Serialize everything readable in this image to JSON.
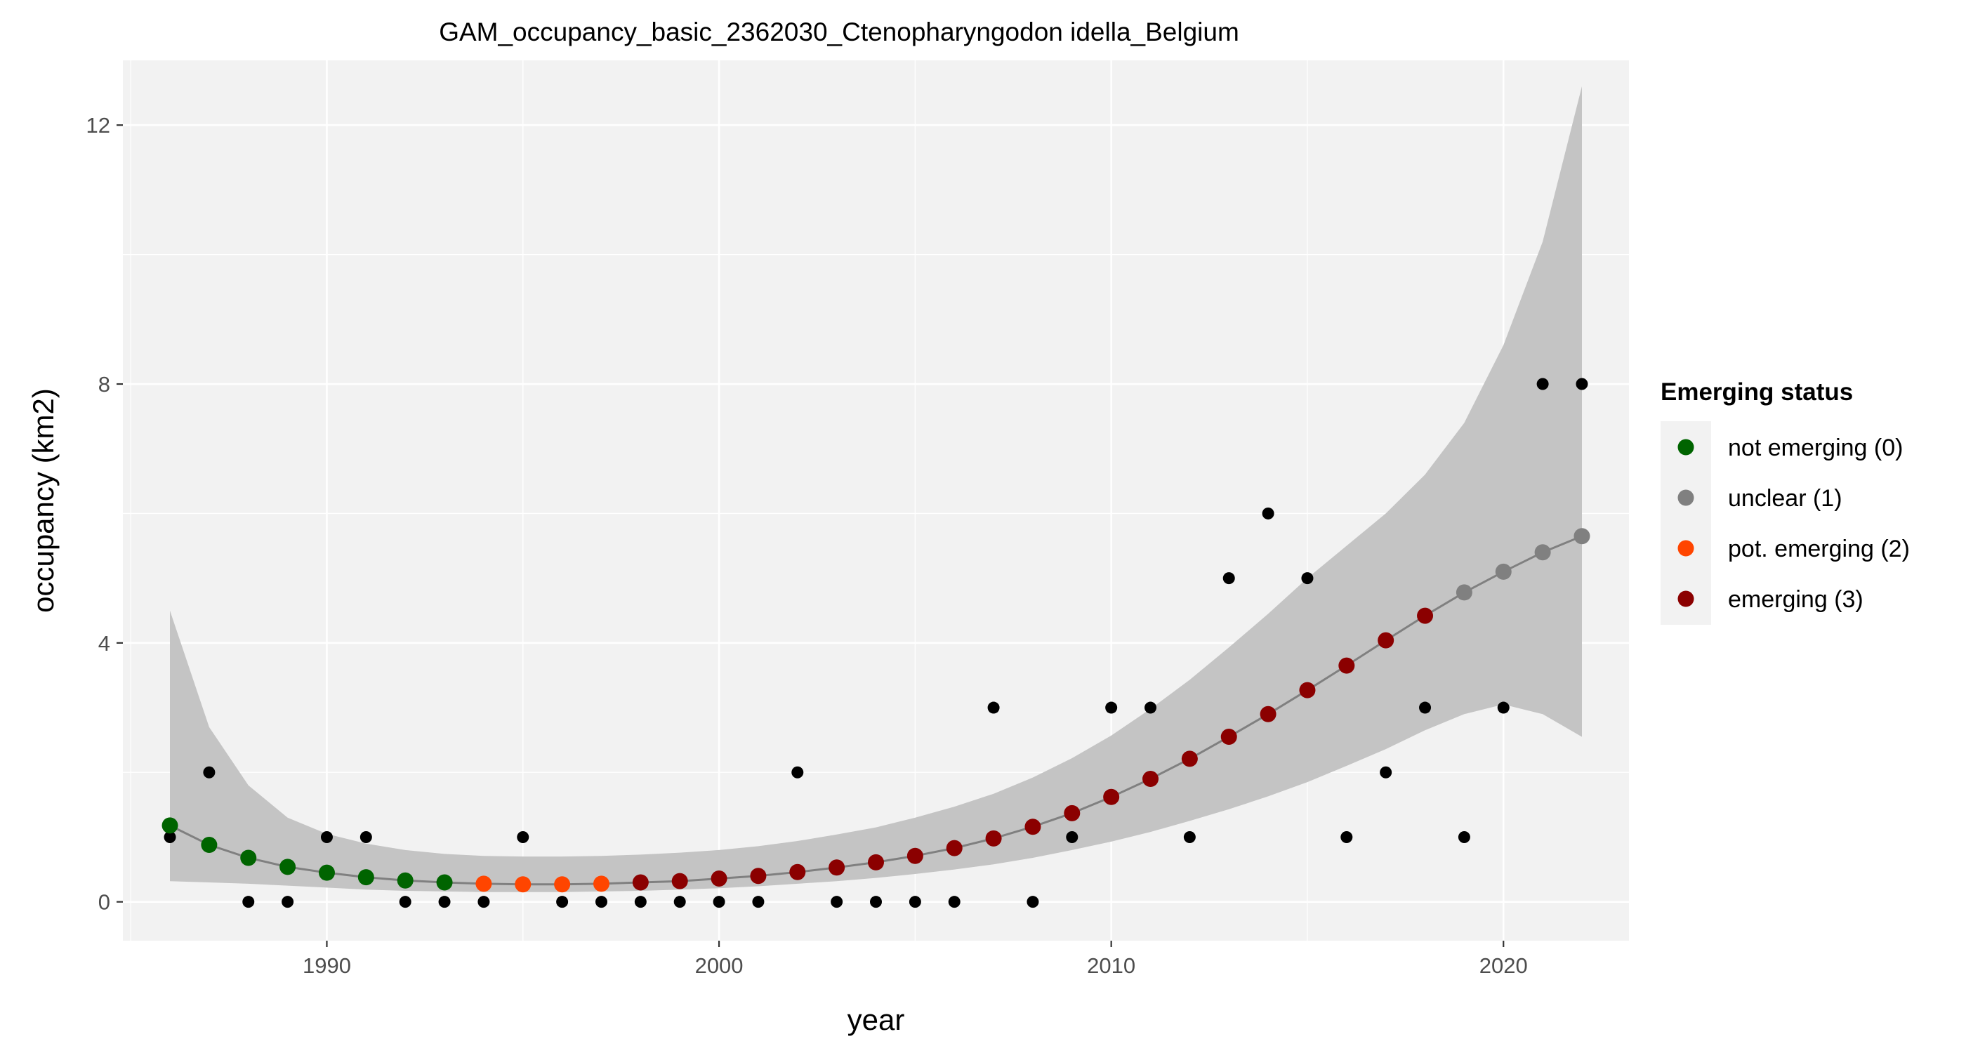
{
  "chart_data": {
    "type": "scatter",
    "title": "GAM_occupancy_basic_2362030_Ctenopharyngodon idella_Belgium",
    "xlabel": "year",
    "ylabel": "occupancy (km2)",
    "xlim": [
      1984.8,
      2023.2
    ],
    "ylim": [
      -0.6,
      13.0
    ],
    "x_ticks": [
      1990,
      2000,
      2010,
      2020
    ],
    "y_ticks": [
      0,
      4,
      8,
      12
    ],
    "grid": true,
    "legend": {
      "title": "Emerging status",
      "position": "right",
      "entries": [
        {
          "label": "not emerging (0)",
          "color": "#006400"
        },
        {
          "label": "unclear (1)",
          "color": "#808080"
        },
        {
          "label": "pot. emerging (2)",
          "color": "#FF4500"
        },
        {
          "label": "emerging (3)",
          "color": "#8B0000"
        }
      ]
    },
    "observed": {
      "name": "observed",
      "color": "#000000",
      "points": [
        [
          1986,
          1
        ],
        [
          1987,
          2
        ],
        [
          1988,
          0
        ],
        [
          1989,
          0
        ],
        [
          1990,
          1
        ],
        [
          1991,
          1
        ],
        [
          1992,
          0
        ],
        [
          1993,
          0
        ],
        [
          1994,
          0
        ],
        [
          1995,
          1
        ],
        [
          1996,
          0
        ],
        [
          1997,
          0
        ],
        [
          1998,
          0
        ],
        [
          1999,
          0
        ],
        [
          2000,
          0
        ],
        [
          2001,
          0
        ],
        [
          2002,
          2
        ],
        [
          2003,
          0
        ],
        [
          2004,
          0
        ],
        [
          2005,
          0
        ],
        [
          2006,
          0
        ],
        [
          2007,
          3
        ],
        [
          2008,
          0
        ],
        [
          2009,
          1
        ],
        [
          2010,
          3
        ],
        [
          2011,
          3
        ],
        [
          2012,
          1
        ],
        [
          2013,
          5
        ],
        [
          2014,
          6
        ],
        [
          2015,
          5
        ],
        [
          2016,
          1
        ],
        [
          2017,
          2
        ],
        [
          2018,
          3
        ],
        [
          2019,
          1
        ],
        [
          2020,
          3
        ],
        [
          2021,
          8
        ],
        [
          2022,
          8
        ]
      ]
    },
    "fitted": {
      "name": "fit",
      "line_color": "#808080",
      "x": [
        1986,
        1987,
        1988,
        1989,
        1990,
        1991,
        1992,
        1993,
        1994,
        1995,
        1996,
        1997,
        1998,
        1999,
        2000,
        2001,
        2002,
        2003,
        2004,
        2005,
        2006,
        2007,
        2008,
        2009,
        2010,
        2011,
        2012,
        2013,
        2014,
        2015,
        2016,
        2017,
        2018,
        2019,
        2020,
        2021,
        2022
      ],
      "y": [
        1.18,
        0.88,
        0.68,
        0.54,
        0.45,
        0.38,
        0.33,
        0.3,
        0.28,
        0.27,
        0.27,
        0.28,
        0.3,
        0.32,
        0.36,
        0.4,
        0.46,
        0.53,
        0.61,
        0.71,
        0.83,
        0.98,
        1.16,
        1.37,
        1.62,
        1.9,
        2.21,
        2.55,
        2.9,
        3.27,
        3.65,
        4.04,
        4.42,
        4.78,
        5.1,
        5.4,
        5.65
      ],
      "status": [
        0,
        0,
        0,
        0,
        0,
        0,
        0,
        0,
        2,
        2,
        2,
        2,
        3,
        3,
        3,
        3,
        3,
        3,
        3,
        3,
        3,
        3,
        3,
        3,
        3,
        3,
        3,
        3,
        3,
        3,
        3,
        3,
        3,
        1,
        1,
        1,
        1
      ],
      "lower": [
        0.32,
        0.3,
        0.28,
        0.25,
        0.22,
        0.19,
        0.17,
        0.16,
        0.15,
        0.15,
        0.15,
        0.16,
        0.17,
        0.19,
        0.21,
        0.24,
        0.28,
        0.32,
        0.37,
        0.43,
        0.5,
        0.58,
        0.68,
        0.8,
        0.93,
        1.08,
        1.25,
        1.43,
        1.63,
        1.85,
        2.1,
        2.36,
        2.65,
        2.9,
        3.05,
        2.9,
        2.55
      ],
      "upper": [
        4.5,
        2.7,
        1.8,
        1.3,
        1.05,
        0.9,
        0.8,
        0.74,
        0.71,
        0.7,
        0.7,
        0.71,
        0.73,
        0.76,
        0.8,
        0.86,
        0.94,
        1.04,
        1.15,
        1.3,
        1.47,
        1.67,
        1.92,
        2.22,
        2.57,
        2.98,
        3.43,
        3.93,
        4.45,
        5.0,
        5.5,
        6.0,
        6.6,
        7.4,
        8.6,
        10.2,
        12.6
      ]
    }
  }
}
